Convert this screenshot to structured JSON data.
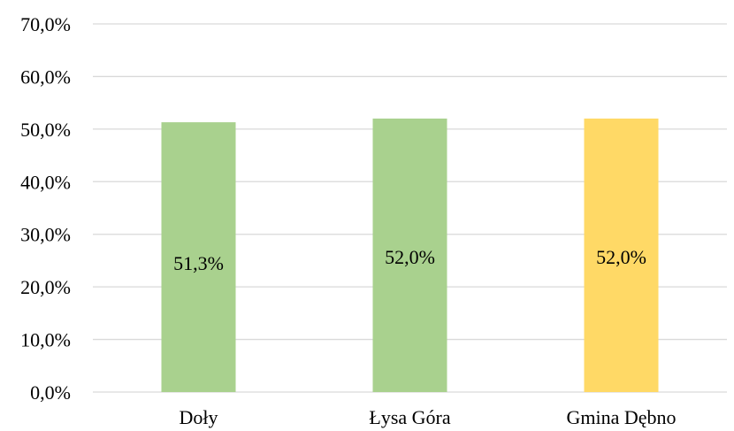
{
  "chart_data": {
    "type": "bar",
    "title": "",
    "xlabel": "",
    "ylabel": "",
    "categories": [
      "Doły",
      "Łysa Góra",
      "Gmina Dębno"
    ],
    "values": [
      51.3,
      52.0,
      52.0
    ],
    "data_labels": [
      "51,3%",
      "52,0%",
      "52,0%"
    ],
    "bar_colors": [
      "#a9d18e",
      "#a9d18e",
      "#ffd966"
    ],
    "ylim": [
      0,
      70
    ],
    "yticks": [
      0,
      10,
      20,
      30,
      40,
      50,
      60,
      70
    ],
    "ytick_labels": [
      "0,0%",
      "10,0%",
      "20,0%",
      "30,0%",
      "40,0%",
      "50,0%",
      "60,0%",
      "70,0%"
    ],
    "grid": true,
    "grid_color": "#d9d9d9",
    "legend": "none"
  }
}
